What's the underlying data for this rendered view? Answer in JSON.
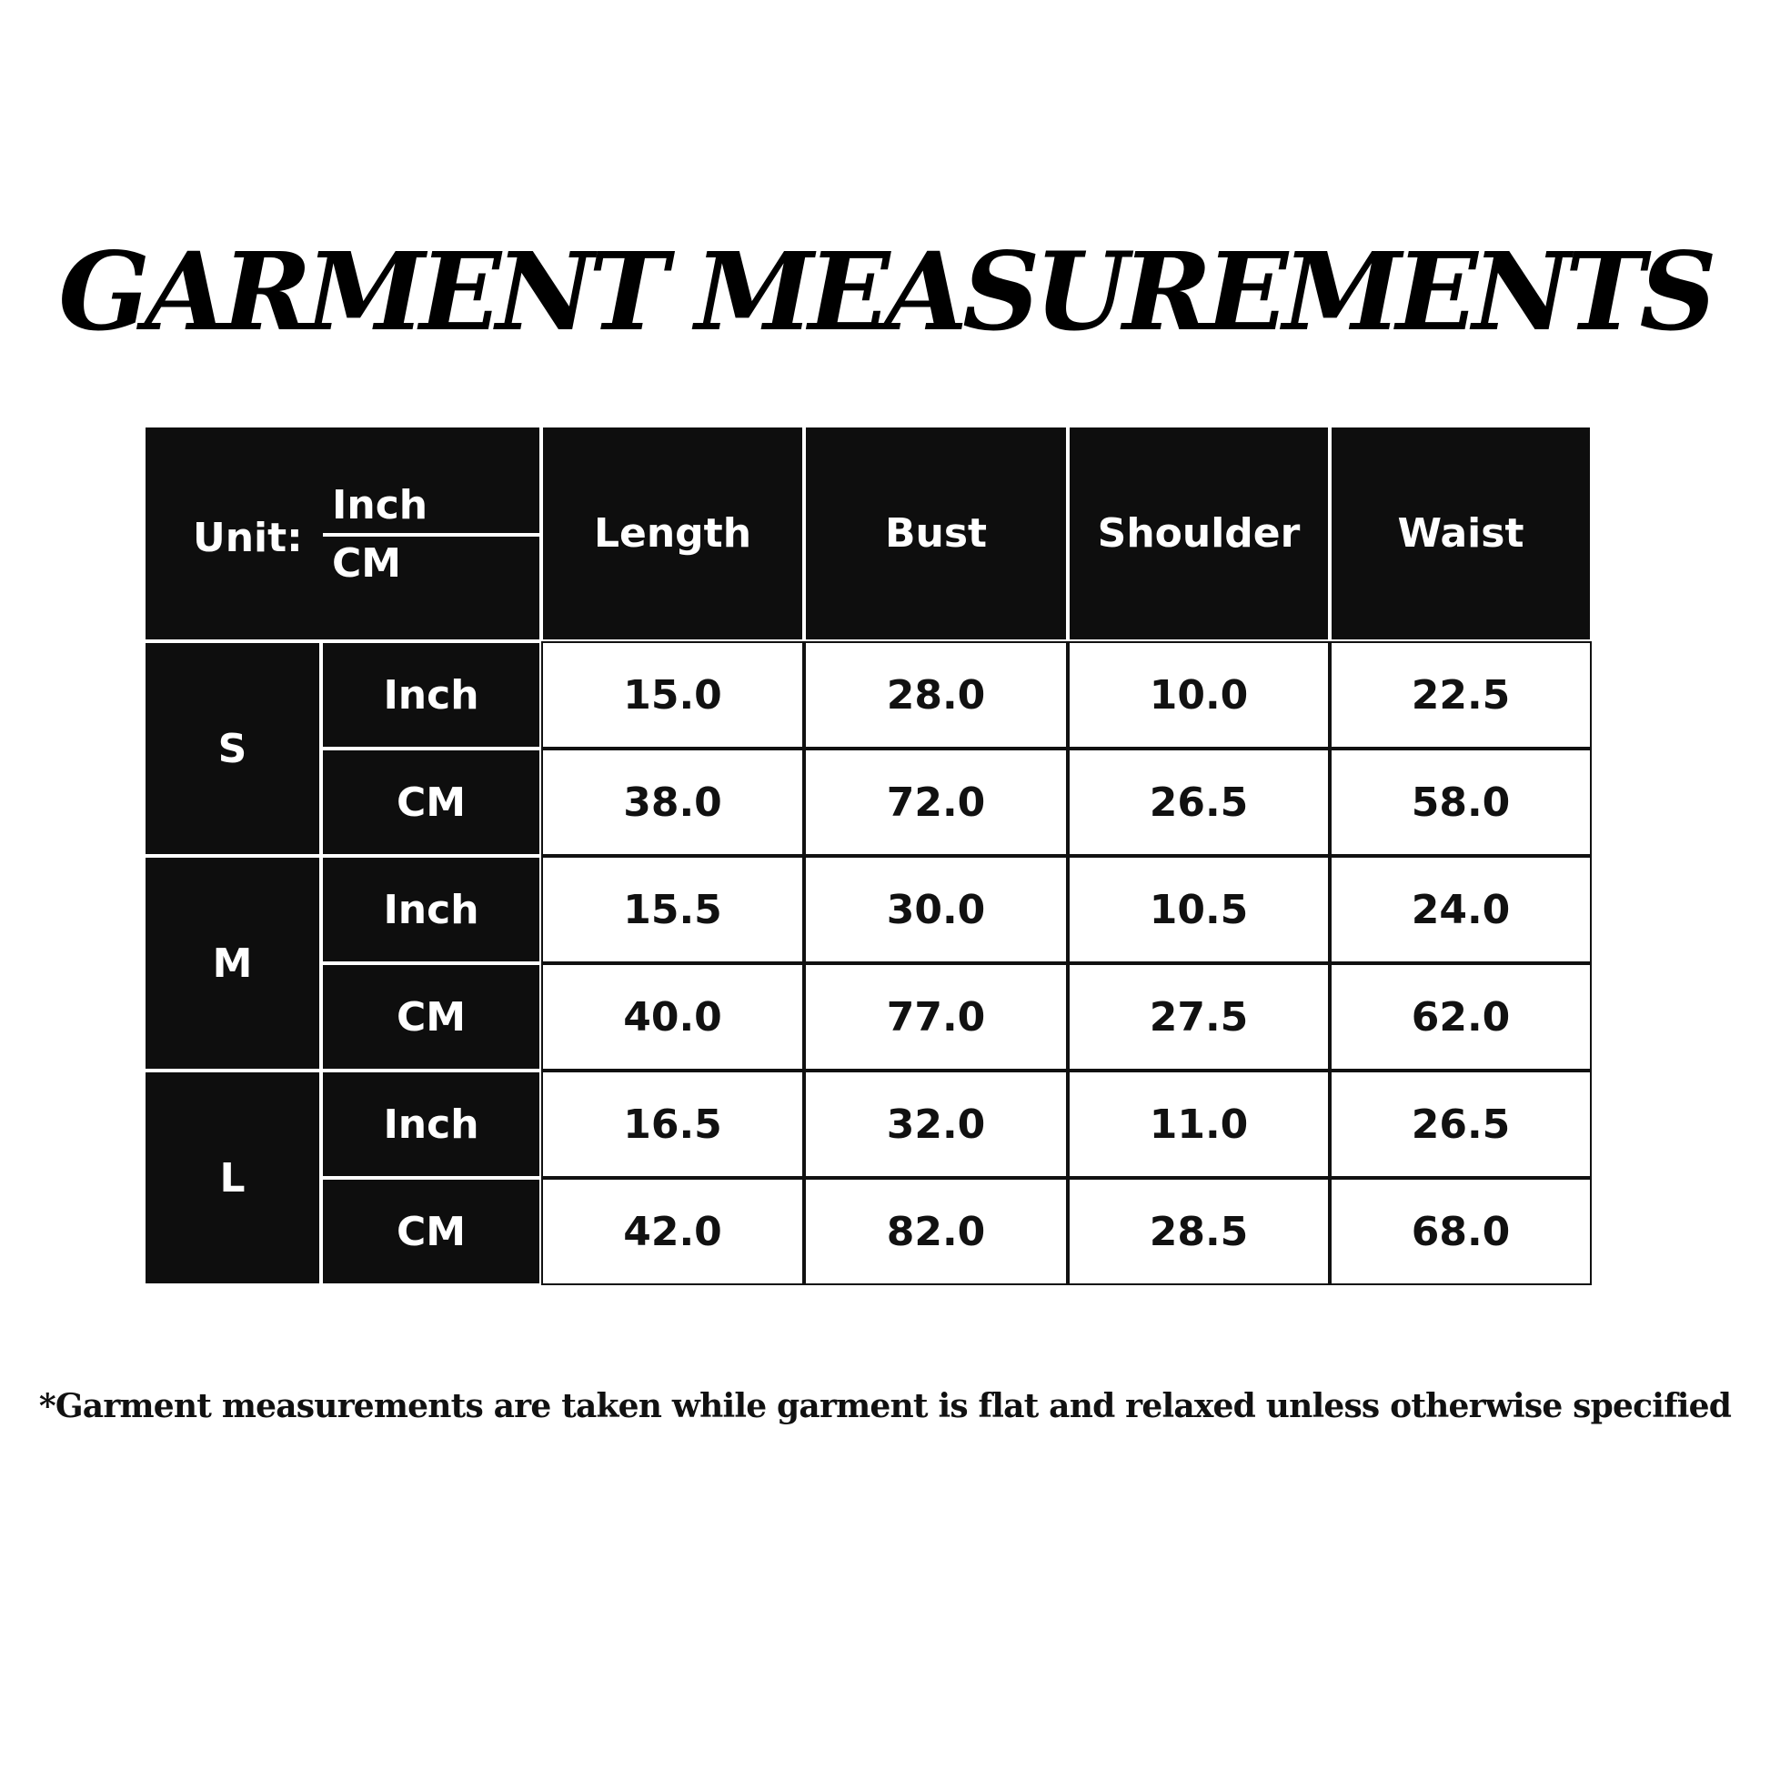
{
  "title": "GARMENT MEASUREMENTS",
  "table": {
    "unit_label": "Unit:",
    "unit_top": "Inch",
    "unit_bottom": "CM",
    "columns": [
      "Length",
      "Bust",
      "Shoulder",
      "Waist"
    ],
    "sizes": [
      {
        "size": "S",
        "rows": [
          {
            "unit": "Inch",
            "values": [
              "15.0",
              "28.0",
              "10.0",
              "22.5"
            ]
          },
          {
            "unit": "CM",
            "values": [
              "38.0",
              "72.0",
              "26.5",
              "58.0"
            ]
          }
        ]
      },
      {
        "size": "M",
        "rows": [
          {
            "unit": "Inch",
            "values": [
              "15.5",
              "30.0",
              "10.5",
              "24.0"
            ]
          },
          {
            "unit": "CM",
            "values": [
              "40.0",
              "77.0",
              "27.5",
              "62.0"
            ]
          }
        ]
      },
      {
        "size": "L",
        "rows": [
          {
            "unit": "Inch",
            "values": [
              "16.5",
              "32.0",
              "11.0",
              "26.5"
            ]
          },
          {
            "unit": "CM",
            "values": [
              "42.0",
              "82.0",
              "28.5",
              "68.0"
            ]
          }
        ]
      }
    ]
  },
  "footnote": "*Garment measurements are taken while garment is flat and relaxed unless otherwise specified"
}
